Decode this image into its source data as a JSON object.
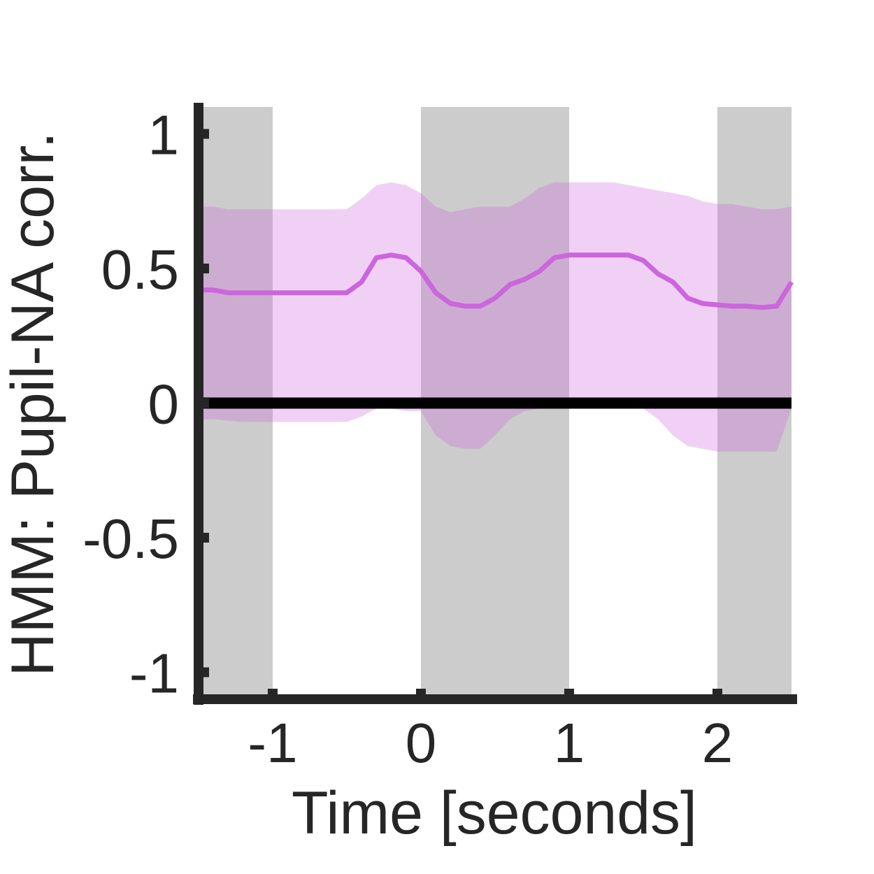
{
  "chart_data": {
    "type": "line",
    "title": "",
    "xlabel": "Time [seconds]",
    "ylabel": "HMM: Pupil-NA corr.",
    "xlim": [
      -1.5,
      2.5
    ],
    "ylim": [
      -1.1,
      1.1
    ],
    "xticks": [
      -1,
      0,
      1,
      2
    ],
    "xtick_labels": [
      "-1",
      "0",
      "1",
      "2"
    ],
    "yticks": [
      -1,
      -0.5,
      0,
      0.5,
      1
    ],
    "ytick_labels": [
      "-1",
      "-0.5",
      "0",
      "0.5",
      "1"
    ],
    "grid": false,
    "legend": "none",
    "shaded_intervals": [
      [
        -1.5,
        -1.0
      ],
      [
        0.0,
        1.0
      ],
      [
        2.0,
        2.5
      ]
    ],
    "reference_line": {
      "y": 0
    },
    "series": [
      {
        "x": [
          -1.5,
          -1.4,
          -1.3,
          -1.2,
          -1.1,
          -1.0,
          -0.9,
          -0.8,
          -0.7,
          -0.6,
          -0.5,
          -0.4,
          -0.3,
          -0.2,
          -0.1,
          0.0,
          0.1,
          0.2,
          0.3,
          0.4,
          0.5,
          0.6,
          0.7,
          0.8,
          0.9,
          1.0,
          1.1,
          1.2,
          1.3,
          1.4,
          1.5,
          1.6,
          1.7,
          1.8,
          1.9,
          2.0,
          2.1,
          2.2,
          2.3,
          2.4,
          2.5
        ],
        "y": [
          0.42,
          0.42,
          0.41,
          0.41,
          0.41,
          0.41,
          0.41,
          0.41,
          0.41,
          0.41,
          0.41,
          0.45,
          0.54,
          0.55,
          0.54,
          0.49,
          0.41,
          0.37,
          0.36,
          0.36,
          0.39,
          0.44,
          0.46,
          0.49,
          0.54,
          0.55,
          0.55,
          0.55,
          0.55,
          0.55,
          0.53,
          0.48,
          0.45,
          0.39,
          0.37,
          0.365,
          0.36,
          0.36,
          0.355,
          0.36,
          0.45
        ],
        "lower": [
          -0.06,
          -0.06,
          -0.065,
          -0.07,
          -0.07,
          -0.07,
          -0.07,
          -0.07,
          -0.07,
          -0.07,
          -0.07,
          -0.05,
          -0.02,
          -0.02,
          -0.03,
          -0.03,
          -0.12,
          -0.16,
          -0.17,
          -0.17,
          -0.12,
          -0.06,
          -0.03,
          -0.02,
          -0.01,
          0.0,
          0.0,
          0.0,
          0.0,
          0.0,
          -0.02,
          -0.06,
          -0.12,
          -0.16,
          -0.17,
          -0.18,
          -0.18,
          -0.18,
          -0.18,
          -0.18,
          -0.02
        ],
        "upper": [
          0.73,
          0.73,
          0.72,
          0.72,
          0.72,
          0.72,
          0.72,
          0.72,
          0.72,
          0.72,
          0.72,
          0.76,
          0.81,
          0.82,
          0.81,
          0.78,
          0.73,
          0.71,
          0.72,
          0.73,
          0.73,
          0.73,
          0.76,
          0.8,
          0.82,
          0.82,
          0.82,
          0.82,
          0.82,
          0.81,
          0.8,
          0.79,
          0.78,
          0.77,
          0.75,
          0.74,
          0.74,
          0.73,
          0.72,
          0.72,
          0.73
        ]
      }
    ],
    "colors": {
      "line": "#cc66dd",
      "band": "#cc66dd",
      "shade": "#cccccc",
      "zero_line": "#000000",
      "axis": "#262626"
    }
  }
}
